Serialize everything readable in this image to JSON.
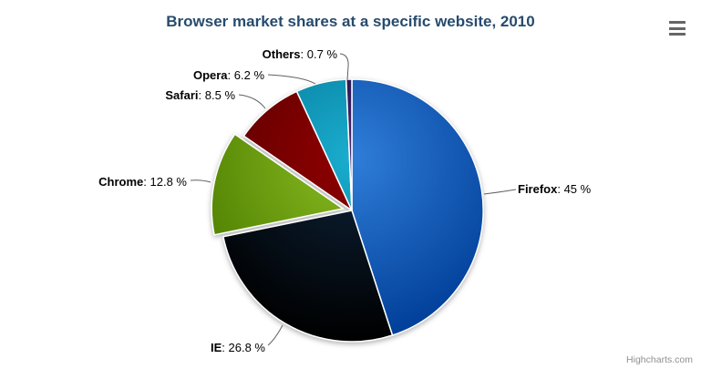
{
  "chart": {
    "title": "Browser market shares at a specific website, 2010",
    "credits": "Highcharts.com"
  },
  "colors": {
    "title_text": "#274b6d",
    "label_text": "#000000",
    "connector": "#606060",
    "credits_text": "#909090",
    "menu_icon": "#666666",
    "background": "#ffffff",
    "slice_border": "#ffffff"
  },
  "chart_data": {
    "type": "pie",
    "title": "Browser market shares at a specific website, 2010",
    "legend_position": "none",
    "unit": "%",
    "label_separator": ": ",
    "slices": [
      {
        "name": "Firefox",
        "value": 45,
        "value_text": "45 %",
        "color": "#2f7ed8",
        "sliced": false
      },
      {
        "name": "IE",
        "value": 26.8,
        "value_text": "26.8 %",
        "color": "#0d233a",
        "sliced": false
      },
      {
        "name": "Chrome",
        "value": 12.8,
        "value_text": "12.8 %",
        "color": "#8bbc21",
        "sliced": true
      },
      {
        "name": "Safari",
        "value": 8.5,
        "value_text": "8.5 %",
        "color": "#910000",
        "sliced": false
      },
      {
        "name": "Opera",
        "value": 6.2,
        "value_text": "6.2 %",
        "color": "#1aadce",
        "sliced": false
      },
      {
        "name": "Others",
        "value": 0.7,
        "value_text": "0.7 %",
        "color": "#492970",
        "sliced": false
      }
    ]
  }
}
